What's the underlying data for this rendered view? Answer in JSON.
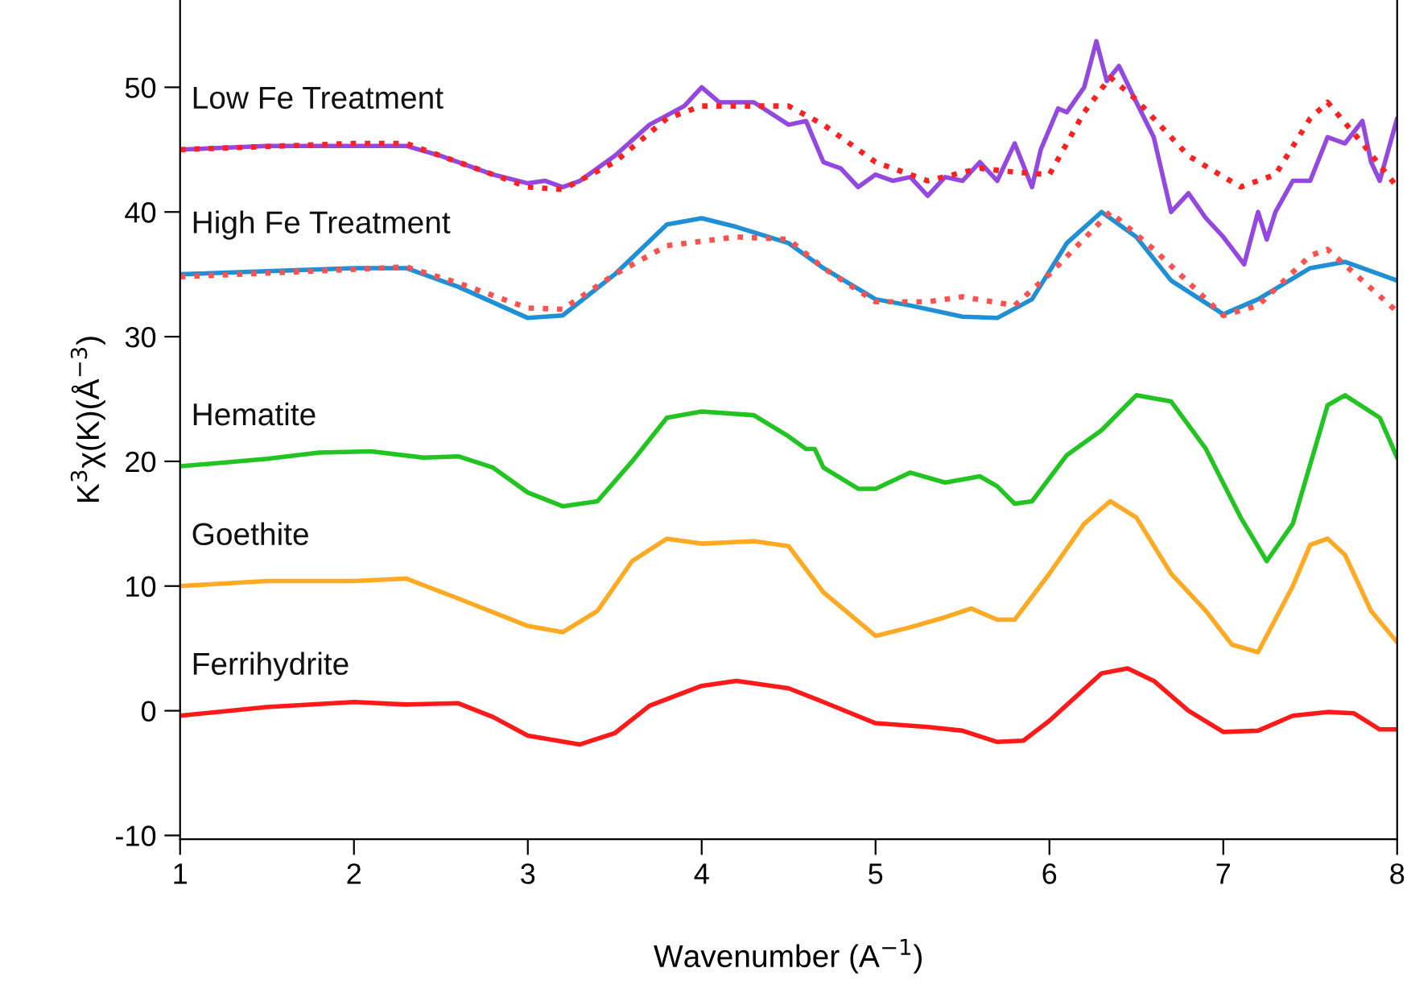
{
  "chart_data": {
    "type": "line",
    "xlabel": "Wavenumber (A$^{−1}$)",
    "ylabel": "K$^{3}$χ(K)(Å$^{−3}$)",
    "xlim": [
      1,
      8
    ],
    "xticks": [
      1,
      2,
      3,
      4,
      5,
      6,
      7,
      8
    ],
    "ylim": [
      -10.3,
      57
    ],
    "yticks": [
      -10,
      0,
      10,
      20,
      30,
      40,
      50
    ],
    "grid": false,
    "legend": false,
    "series": [
      {
        "name": "Low Fe Treatment",
        "color": "#9448e0",
        "line_style": "solid",
        "x": [
          1,
          1.5,
          2,
          2.3,
          2.5,
          2.8,
          3.0,
          3.1,
          3.2,
          3.3,
          3.5,
          3.7,
          3.9,
          4.0,
          4.1,
          4.3,
          4.5,
          4.6,
          4.7,
          4.8,
          4.9,
          5.0,
          5.1,
          5.2,
          5.3,
          5.4,
          5.5,
          5.6,
          5.7,
          5.8,
          5.9,
          5.95,
          6.05,
          6.1,
          6.2,
          6.27,
          6.33,
          6.4,
          6.5,
          6.6,
          6.7,
          6.8,
          6.9,
          7.0,
          7.12,
          7.2,
          7.25,
          7.3,
          7.4,
          7.5,
          7.6,
          7.7,
          7.8,
          7.85,
          7.9,
          8.0
        ],
        "values": [
          45,
          45.3,
          45.3,
          45.3,
          44.5,
          43,
          42.3,
          42.5,
          42,
          42.5,
          44.5,
          47,
          48.5,
          50,
          48.8,
          48.8,
          47,
          47.3,
          44,
          43.5,
          42,
          43,
          42.5,
          42.8,
          41.3,
          42.8,
          42.5,
          44,
          42.5,
          45.5,
          42,
          45,
          48.3,
          48,
          50,
          53.7,
          50.5,
          51.7,
          48.8,
          46,
          40,
          41.5,
          39.5,
          38,
          35.8,
          40,
          37.8,
          40,
          42.5,
          42.5,
          46,
          45.5,
          47.3,
          44,
          42.5,
          47.5
        ]
      },
      {
        "color": "#ff2020",
        "line_style": "dotted",
        "x": [
          1,
          2,
          2.3,
          2.6,
          3.0,
          3.2,
          3.5,
          3.8,
          4.0,
          4.5,
          4.7,
          5.0,
          5.3,
          5.6,
          5.8,
          6.0,
          6.2,
          6.35,
          6.5,
          6.8,
          7.1,
          7.3,
          7.5,
          7.6,
          7.8,
          8.0
        ],
        "values": [
          45,
          45.5,
          45.5,
          44,
          42,
          41.8,
          44,
          47.5,
          48.5,
          48.5,
          47,
          44,
          42.5,
          43.5,
          43.2,
          43,
          48,
          50.8,
          49,
          44.5,
          42,
          43,
          47.5,
          48.8,
          45.5,
          42
        ]
      },
      {
        "name": "High Fe Treatment",
        "color": "#1f8fd6",
        "line_style": "solid",
        "x": [
          1,
          2,
          2.3,
          2.6,
          3.0,
          3.2,
          3.5,
          3.8,
          4.0,
          4.2,
          4.5,
          4.7,
          5.0,
          5.2,
          5.5,
          5.7,
          5.9,
          6.1,
          6.3,
          6.5,
          6.7,
          7.0,
          7.2,
          7.5,
          7.7,
          7.9,
          8.0
        ],
        "values": [
          35,
          35.5,
          35.5,
          34,
          31.5,
          31.7,
          35,
          39,
          39.5,
          38.8,
          37.5,
          35.5,
          33,
          32.5,
          31.6,
          31.5,
          33,
          37.5,
          40,
          38,
          34.5,
          31.8,
          33,
          35.5,
          36,
          35,
          34.5
        ]
      },
      {
        "color": "#ff5050",
        "line_style": "dotted",
        "x": [
          1,
          2,
          2.3,
          2.6,
          3.0,
          3.2,
          3.5,
          3.8,
          4.2,
          4.5,
          4.7,
          5.0,
          5.3,
          5.5,
          5.8,
          6.0,
          6.35,
          6.6,
          7.0,
          7.2,
          7.5,
          7.6,
          7.8,
          8.0
        ],
        "values": [
          34.8,
          35.4,
          35.6,
          34.3,
          32.3,
          32.2,
          35,
          37.3,
          38,
          37.8,
          35.5,
          32.8,
          32.8,
          33.2,
          32.5,
          35,
          40,
          37,
          31.7,
          32.5,
          36.5,
          37,
          34.5,
          32
        ]
      },
      {
        "name": "Hematite",
        "color": "#22c422",
        "line_style": "solid",
        "x": [
          1,
          1.5,
          1.8,
          2.1,
          2.4,
          2.6,
          2.8,
          3.0,
          3.2,
          3.4,
          3.6,
          3.8,
          4.0,
          4.3,
          4.5,
          4.6,
          4.65,
          4.7,
          4.9,
          5.0,
          5.2,
          5.4,
          5.6,
          5.7,
          5.8,
          5.9,
          6.1,
          6.3,
          6.5,
          6.7,
          6.9,
          7.1,
          7.25,
          7.4,
          7.6,
          7.7,
          7.9,
          8.0
        ],
        "values": [
          19.6,
          20.2,
          20.7,
          20.8,
          20.3,
          20.4,
          19.5,
          17.5,
          16.4,
          16.8,
          20,
          23.5,
          24,
          23.7,
          22,
          21,
          21,
          19.5,
          17.8,
          17.8,
          19.1,
          18.3,
          18.8,
          18,
          16.6,
          16.8,
          20.5,
          22.5,
          25.3,
          24.8,
          21,
          15.5,
          12,
          15,
          24.5,
          25.3,
          23.5,
          20.3
        ]
      },
      {
        "name": "Goethite",
        "color": "#ffaa22",
        "line_style": "solid",
        "x": [
          1,
          1.5,
          2,
          2.3,
          2.6,
          3.0,
          3.2,
          3.4,
          3.6,
          3.8,
          4.0,
          4.3,
          4.5,
          4.7,
          5.0,
          5.2,
          5.4,
          5.55,
          5.7,
          5.8,
          6.0,
          6.2,
          6.35,
          6.5,
          6.7,
          6.9,
          7.05,
          7.2,
          7.4,
          7.5,
          7.6,
          7.7,
          7.85,
          8.0
        ],
        "values": [
          10,
          10.4,
          10.4,
          10.6,
          9,
          6.8,
          6.3,
          8,
          12,
          13.8,
          13.4,
          13.6,
          13.2,
          9.5,
          6,
          6.7,
          7.5,
          8.2,
          7.3,
          7.3,
          11,
          15,
          16.8,
          15.5,
          11,
          8,
          5.3,
          4.7,
          10,
          13.3,
          13.8,
          12.5,
          8,
          5.5
        ]
      },
      {
        "name": "Ferrihydrite",
        "color": "#ff1a1a",
        "line_style": "solid",
        "x": [
          1,
          1.5,
          2,
          2.3,
          2.6,
          2.8,
          3.0,
          3.3,
          3.5,
          3.7,
          4.0,
          4.2,
          4.5,
          4.7,
          5.0,
          5.3,
          5.5,
          5.7,
          5.85,
          6.0,
          6.3,
          6.45,
          6.6,
          6.8,
          7.0,
          7.2,
          7.4,
          7.6,
          7.75,
          7.9,
          8.0
        ],
        "values": [
          -0.4,
          0.3,
          0.7,
          0.5,
          0.6,
          -0.5,
          -2,
          -2.7,
          -1.8,
          0.4,
          2,
          2.4,
          1.8,
          0.7,
          -1,
          -1.3,
          -1.6,
          -2.5,
          -2.4,
          -0.8,
          3,
          3.4,
          2.4,
          0,
          -1.7,
          -1.6,
          -0.4,
          -0.1,
          -0.2,
          -1.5,
          -1.5
        ]
      }
    ]
  }
}
